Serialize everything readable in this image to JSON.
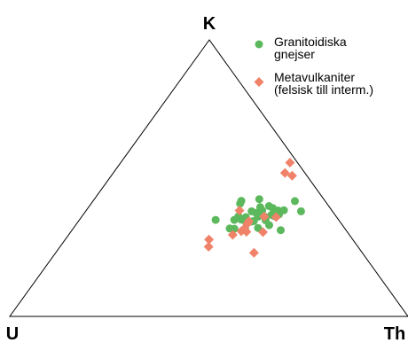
{
  "chart_data": {
    "type": "scatter",
    "plot_kind": "ternary",
    "vertices": {
      "top": "K",
      "left": "U",
      "right": "Th"
    },
    "legend_position": "top-right",
    "series": [
      {
        "name": "Granitoidiska gnejser",
        "name_lines": [
          "Granitoidiska",
          "gnejser"
        ],
        "marker": "circle",
        "color": "#5cb85c",
        "points": [
          [
            0.414,
            0.424
          ],
          [
            0.372,
            0.418
          ],
          [
            0.417,
            0.38
          ],
          [
            0.442,
            0.383
          ],
          [
            0.451,
            0.399
          ],
          [
            0.393,
            0.362
          ],
          [
            0.461,
            0.36
          ],
          [
            0.491,
            0.369
          ],
          [
            0.473,
            0.367
          ],
          [
            0.496,
            0.384
          ],
          [
            0.507,
            0.417
          ],
          [
            0.482,
            0.383
          ],
          [
            0.464,
            0.392
          ],
          [
            0.431,
            0.374
          ],
          [
            0.431,
            0.395
          ],
          [
            0.413,
            0.359
          ],
          [
            0.44,
            0.345
          ],
          [
            0.432,
            0.317
          ],
          [
            0.486,
            0.33
          ],
          [
            0.443,
            0.361
          ],
          [
            0.406,
            0.35
          ],
          [
            0.463,
            0.32
          ],
          [
            0.524,
            0.312
          ],
          [
            0.468,
            0.348
          ],
          [
            0.405,
            0.317
          ],
          [
            0.342,
            0.349
          ],
          [
            0.393,
            0.318
          ],
          [
            0.374,
            0.408
          ],
          [
            0.389,
            0.349
          ],
          [
            0.435,
            0.343
          ],
          [
            0.541,
            0.38
          ],
          [
            0.423,
            0.34
          ],
          [
            0.482,
            0.363
          ]
        ]
      },
      {
        "name": "Metavulkaniter (felsisk till interm.)",
        "name_lines": [
          "Metavulkaniter",
          "(felsisk till interm.)"
        ],
        "marker": "diamond",
        "color": "#f0826a",
        "points": [
          [
            0.425,
            0.556
          ],
          [
            0.431,
            0.519
          ],
          [
            0.454,
            0.509
          ],
          [
            0.385,
            0.383
          ],
          [
            0.458,
            0.361
          ],
          [
            0.428,
            0.344
          ],
          [
            0.412,
            0.295
          ],
          [
            0.43,
            0.316
          ],
          [
            0.427,
            0.308
          ],
          [
            0.429,
            0.335
          ],
          [
            0.483,
            0.305
          ],
          [
            0.489,
            0.359
          ],
          [
            0.498,
            0.23
          ],
          [
            0.361,
            0.278
          ],
          [
            0.373,
            0.252
          ],
          [
            0.441,
            0.306
          ]
        ]
      }
    ]
  }
}
